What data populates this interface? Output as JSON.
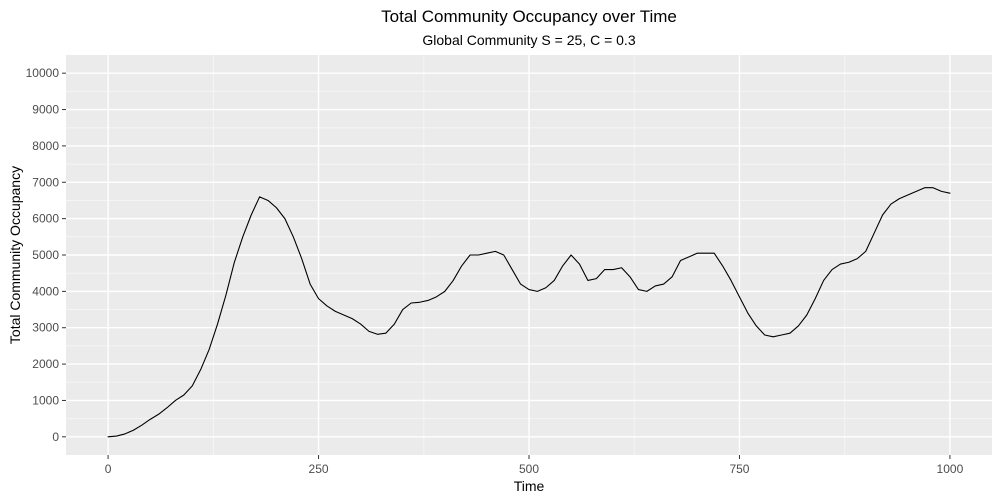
{
  "chart_data": {
    "type": "line",
    "title": "Total Community Occupancy over Time",
    "subtitle": "Global Community S = 25, C = 0.3",
    "xlabel": "Time",
    "ylabel": "Total Community Occupancy",
    "xlim": [
      -50,
      1050
    ],
    "ylim": [
      -500,
      10500
    ],
    "x_ticks": [
      0,
      250,
      500,
      750,
      1000
    ],
    "y_ticks": [
      0,
      1000,
      2000,
      3000,
      4000,
      5000,
      6000,
      7000,
      8000,
      9000,
      10000
    ],
    "grid": true,
    "legend": "none",
    "colors": {
      "panel_background": "#ebebeb",
      "grid_major": "#ffffff",
      "grid_minor": "#f5f5f5",
      "line": "#000000",
      "tick_text": "#4d4d4d"
    },
    "series": [
      {
        "x": [
          0,
          10,
          20,
          30,
          40,
          50,
          60,
          70,
          80,
          90,
          100,
          110,
          120,
          130,
          140,
          150,
          160,
          170,
          180,
          190,
          200,
          210,
          220,
          230,
          240,
          250,
          260,
          270,
          280,
          290,
          300,
          310,
          320,
          330,
          340,
          350,
          360,
          370,
          380,
          390,
          400,
          410,
          420,
          430,
          440,
          450,
          460,
          470,
          480,
          490,
          500,
          510,
          520,
          530,
          540,
          550,
          560,
          570,
          580,
          590,
          600,
          610,
          620,
          630,
          640,
          650,
          660,
          670,
          680,
          690,
          700,
          710,
          720,
          730,
          740,
          750,
          760,
          770,
          780,
          790,
          800,
          810,
          820,
          830,
          840,
          850,
          860,
          870,
          880,
          890,
          900,
          910,
          920,
          930,
          940,
          950,
          960,
          970,
          980,
          990,
          1000
        ],
        "values": [
          0,
          20,
          80,
          180,
          320,
          480,
          620,
          800,
          1000,
          1150,
          1400,
          1850,
          2400,
          3100,
          3900,
          4800,
          5500,
          6100,
          6600,
          6500,
          6300,
          6000,
          5500,
          4900,
          4200,
          3800,
          3600,
          3450,
          3350,
          3250,
          3100,
          2900,
          2820,
          2850,
          3100,
          3500,
          3680,
          3700,
          3750,
          3850,
          4000,
          4300,
          4700,
          5000,
          5000,
          5050,
          5100,
          5000,
          4600,
          4200,
          4050,
          4000,
          4100,
          4300,
          4700,
          5000,
          4750,
          4300,
          4350,
          4600,
          4600,
          4650,
          4400,
          4050,
          4000,
          4150,
          4200,
          4400,
          4850,
          4950,
          5050,
          5050,
          5050,
          4700,
          4300,
          3850,
          3400,
          3050,
          2800,
          2750,
          2800,
          2850,
          3050,
          3350,
          3800,
          4300,
          4600,
          4750,
          4800,
          4900,
          5100,
          5600,
          6100,
          6400,
          6550,
          6650,
          6750,
          6850,
          6850,
          6750,
          6700
        ]
      }
    ]
  }
}
